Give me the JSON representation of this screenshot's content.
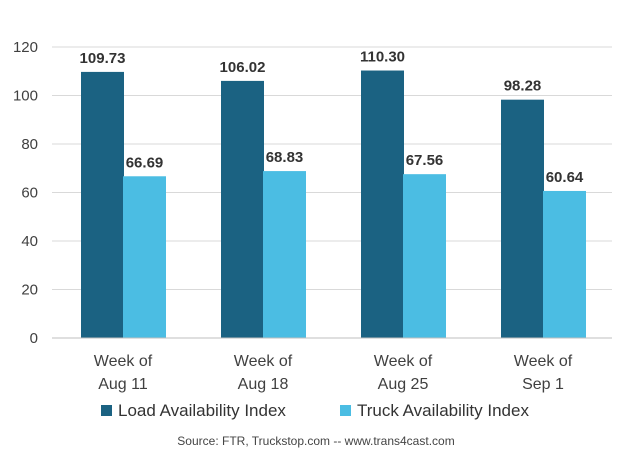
{
  "chart_data": {
    "type": "bar",
    "categories": [
      [
        "Week of",
        "Aug 11"
      ],
      [
        "Week of",
        "Aug 18"
      ],
      [
        "Week of",
        "Aug 25"
      ],
      [
        "Week of",
        "Sep 1"
      ]
    ],
    "series": [
      {
        "name": "Load Availability Index",
        "color": "#1b6282",
        "values": [
          109.73,
          106.02,
          110.3,
          98.28
        ],
        "labels": [
          "109.73",
          "106.02",
          "110.30",
          "98.28"
        ]
      },
      {
        "name": "Truck Availability Index",
        "color": "#4bbde3",
        "values": [
          66.69,
          68.83,
          67.56,
          60.64
        ],
        "labels": [
          "66.69",
          "68.83",
          "67.56",
          "60.64"
        ]
      }
    ],
    "ylim": [
      0,
      120
    ],
    "yticks": [
      "0",
      "20",
      "40",
      "60",
      "80",
      "100",
      "120"
    ],
    "grid": true,
    "legend": "bottom",
    "source": "Source: FTR, Truckstop.com -- www.trans4cast.com"
  }
}
